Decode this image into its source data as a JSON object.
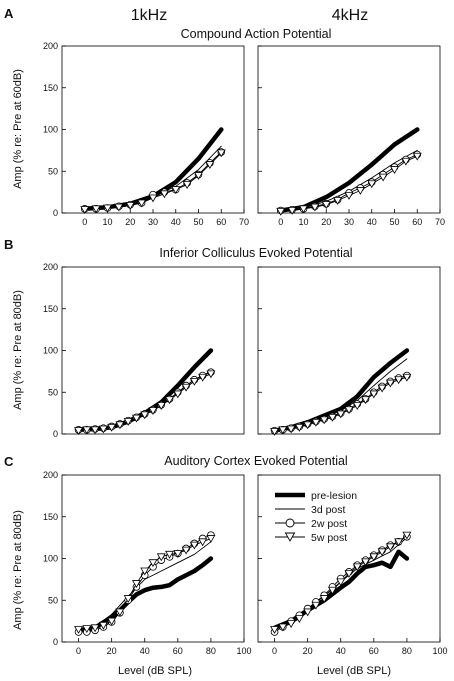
{
  "figure": {
    "column_headers": [
      "1kHz",
      "4kHz"
    ]
  },
  "chart_data": [
    {
      "type": "line",
      "panel_letter": "A",
      "title": "Compound Action Potential",
      "ylabel": "Amp (% re: Pre at 60dB)",
      "xlabel": "",
      "xlim": [
        -10,
        70
      ],
      "ylim": [
        0,
        200
      ],
      "xticks": [
        0,
        10,
        20,
        30,
        40,
        50,
        60,
        70
      ],
      "yticks": [
        0,
        50,
        100,
        150,
        200
      ],
      "subplots": [
        {
          "column": "1kHz",
          "series": [
            {
              "name": "pre-lesion",
              "x": [
                0,
                10,
                20,
                30,
                40,
                50,
                60
              ],
              "y": [
                5,
                7,
                11,
                20,
                37,
                65,
                100
              ]
            },
            {
              "name": "3d post",
              "x": [
                0,
                10,
                20,
                30,
                40,
                50,
                60
              ],
              "y": [
                5,
                7,
                11,
                20,
                32,
                52,
                80
              ]
            },
            {
              "name": "2w post",
              "x": [
                0,
                5,
                10,
                15,
                20,
                25,
                30,
                35,
                40,
                45,
                50,
                55,
                60
              ],
              "y": [
                5,
                5,
                6,
                8,
                10,
                12,
                22,
                25,
                28,
                36,
                46,
                60,
                73
              ]
            },
            {
              "name": "5w post",
              "x": [
                0,
                5,
                10,
                15,
                20,
                25,
                30,
                35,
                40,
                45,
                50,
                55,
                60
              ],
              "y": [
                4,
                5,
                6,
                7,
                9,
                12,
                18,
                23,
                28,
                34,
                45,
                58,
                72
              ]
            }
          ]
        },
        {
          "column": "4kHz",
          "series": [
            {
              "name": "pre-lesion",
              "x": [
                0,
                10,
                20,
                30,
                40,
                50,
                60
              ],
              "y": [
                3,
                7,
                19,
                36,
                58,
                82,
                100
              ]
            },
            {
              "name": "3d post",
              "x": [
                0,
                10,
                20,
                30,
                40,
                50,
                60
              ],
              "y": [
                3,
                6,
                14,
                26,
                42,
                60,
                75
              ]
            },
            {
              "name": "2w post",
              "x": [
                0,
                5,
                10,
                15,
                20,
                25,
                30,
                35,
                40,
                45,
                50,
                55,
                60
              ],
              "y": [
                3,
                4,
                5,
                8,
                11,
                16,
                24,
                30,
                37,
                46,
                55,
                64,
                70
              ]
            },
            {
              "name": "5w post",
              "x": [
                0,
                5,
                10,
                15,
                20,
                25,
                30,
                35,
                40,
                45,
                50,
                55,
                60
              ],
              "y": [
                2,
                3,
                5,
                7,
                10,
                15,
                21,
                27,
                35,
                43,
                52,
                62,
                68
              ]
            }
          ]
        }
      ]
    },
    {
      "type": "line",
      "panel_letter": "B",
      "title": "Inferior Colliculus Evoked Potential",
      "ylabel": "Amp (% re: Pre at 80dB)",
      "xlabel": "",
      "xlim": [
        -10,
        100
      ],
      "ylim": [
        0,
        200
      ],
      "xticks": [],
      "yticks": [
        0,
        50,
        100,
        150,
        200
      ],
      "subplots": [
        {
          "column": "1kHz",
          "series": [
            {
              "name": "pre-lesion",
              "x": [
                0,
                10,
                20,
                30,
                40,
                50,
                60,
                70,
                80
              ],
              "y": [
                5,
                6,
                8,
                15,
                25,
                38,
                58,
                80,
                100
              ]
            },
            {
              "name": "3d post",
              "x": [
                0,
                10,
                20,
                30,
                40,
                50,
                60,
                70,
                80
              ],
              "y": [
                5,
                6,
                8,
                14,
                23,
                34,
                50,
                65,
                75
              ]
            },
            {
              "name": "2w post",
              "x": [
                0,
                5,
                10,
                15,
                20,
                25,
                30,
                35,
                40,
                45,
                50,
                55,
                60,
                65,
                70,
                75,
                80
              ],
              "y": [
                5,
                5,
                6,
                7,
                9,
                12,
                16,
                20,
                24,
                29,
                35,
                42,
                50,
                58,
                65,
                70,
                74
              ]
            },
            {
              "name": "5w post",
              "x": [
                0,
                5,
                10,
                15,
                20,
                25,
                30,
                35,
                40,
                45,
                50,
                55,
                60,
                65,
                70,
                75,
                80
              ],
              "y": [
                4,
                5,
                5,
                6,
                8,
                11,
                15,
                19,
                23,
                28,
                34,
                41,
                48,
                56,
                63,
                68,
                72
              ]
            }
          ]
        },
        {
          "column": "4kHz",
          "series": [
            {
              "name": "pre-lesion",
              "x": [
                0,
                10,
                20,
                30,
                40,
                50,
                60,
                70,
                80
              ],
              "y": [
                4,
                8,
                14,
                22,
                30,
                45,
                68,
                85,
                100
              ]
            },
            {
              "name": "3d post",
              "x": [
                0,
                10,
                20,
                30,
                40,
                50,
                60,
                70,
                80
              ],
              "y": [
                4,
                8,
                14,
                21,
                28,
                40,
                58,
                75,
                90
              ]
            },
            {
              "name": "2w post",
              "x": [
                0,
                5,
                10,
                15,
                20,
                25,
                30,
                35,
                40,
                45,
                50,
                55,
                60,
                65,
                70,
                75,
                80
              ],
              "y": [
                4,
                5,
                7,
                9,
                12,
                15,
                18,
                21,
                25,
                30,
                36,
                42,
                50,
                57,
                63,
                67,
                70
              ]
            },
            {
              "name": "5w post",
              "x": [
                0,
                5,
                10,
                15,
                20,
                25,
                30,
                35,
                40,
                45,
                50,
                55,
                60,
                65,
                70,
                75,
                80
              ],
              "y": [
                3,
                5,
                6,
                8,
                11,
                14,
                17,
                20,
                24,
                29,
                34,
                41,
                48,
                55,
                61,
                65,
                68
              ]
            }
          ]
        }
      ]
    },
    {
      "type": "line",
      "panel_letter": "C",
      "title": "Auditory Cortex Evoked Potential",
      "ylabel": "Amp (% re: Pre at 80dB)",
      "xlabel": "Level (dB SPL)",
      "xlim": [
        -10,
        100
      ],
      "ylim": [
        0,
        200
      ],
      "xticks": [
        0,
        20,
        40,
        60,
        80,
        100
      ],
      "yticks": [
        0,
        50,
        100,
        150,
        200
      ],
      "legend_position": "bottom-left of right subplot",
      "subplots": [
        {
          "column": "1kHz",
          "series": [
            {
              "name": "pre-lesion",
              "x": [
                0,
                10,
                20,
                25,
                30,
                35,
                40,
                45,
                50,
                55,
                60,
                65,
                70,
                75,
                80
              ],
              "y": [
                14,
                17,
                30,
                38,
                48,
                57,
                62,
                65,
                66,
                68,
                75,
                80,
                85,
                92,
                100
              ]
            },
            {
              "name": "3d post",
              "x": [
                0,
                10,
                20,
                30,
                40,
                50,
                60,
                70,
                80
              ],
              "y": [
                14,
                18,
                33,
                55,
                75,
                85,
                95,
                105,
                120
              ]
            },
            {
              "name": "2w post",
              "x": [
                0,
                5,
                10,
                15,
                20,
                25,
                30,
                35,
                40,
                45,
                50,
                55,
                60,
                65,
                70,
                75,
                80
              ],
              "y": [
                12,
                12,
                14,
                18,
                24,
                35,
                50,
                66,
                80,
                90,
                98,
                102,
                106,
                112,
                118,
                124,
                128
              ]
            },
            {
              "name": "5w post",
              "x": [
                0,
                5,
                10,
                15,
                20,
                25,
                30,
                35,
                40,
                45,
                50,
                55,
                60,
                65,
                70,
                75,
                80
              ],
              "y": [
                15,
                16,
                17,
                20,
                25,
                36,
                52,
                70,
                85,
                95,
                102,
                105,
                106,
                110,
                116,
                120,
                124
              ]
            }
          ]
        },
        {
          "column": "4kHz",
          "series": [
            {
              "name": "pre-lesion",
              "x": [
                0,
                10,
                20,
                30,
                40,
                45,
                50,
                55,
                60,
                65,
                70,
                75,
                80
              ],
              "y": [
                17,
                25,
                38,
                50,
                65,
                72,
                82,
                90,
                92,
                95,
                90,
                108,
                100
              ]
            },
            {
              "name": "3d post",
              "x": [
                0,
                10,
                20,
                30,
                40,
                50,
                60,
                70,
                80
              ],
              "y": [
                17,
                26,
                40,
                55,
                72,
                88,
                98,
                108,
                125
              ]
            },
            {
              "name": "2w post",
              "x": [
                0,
                5,
                10,
                15,
                20,
                25,
                30,
                35,
                40,
                45,
                50,
                55,
                60,
                65,
                70,
                75,
                80
              ],
              "y": [
                12,
                18,
                25,
                32,
                40,
                48,
                56,
                66,
                76,
                84,
                92,
                98,
                104,
                110,
                116,
                120,
                126
              ]
            },
            {
              "name": "5w post",
              "x": [
                0,
                5,
                10,
                15,
                20,
                25,
                30,
                35,
                40,
                45,
                50,
                55,
                60,
                65,
                70,
                75,
                80
              ],
              "y": [
                15,
                18,
                22,
                28,
                36,
                44,
                52,
                62,
                72,
                82,
                90,
                96,
                102,
                108,
                114,
                120,
                128
              ]
            }
          ]
        }
      ]
    }
  ],
  "legend": [
    {
      "name": "pre-lesion",
      "style": "thick-line"
    },
    {
      "name": "3d post",
      "style": "thin-line"
    },
    {
      "name": "2w post",
      "style": "circle"
    },
    {
      "name": "5w post",
      "style": "down-triangle"
    }
  ],
  "colors": {
    "line": "#000000",
    "marker_fill": "#ffffff",
    "background": "#ffffff"
  }
}
